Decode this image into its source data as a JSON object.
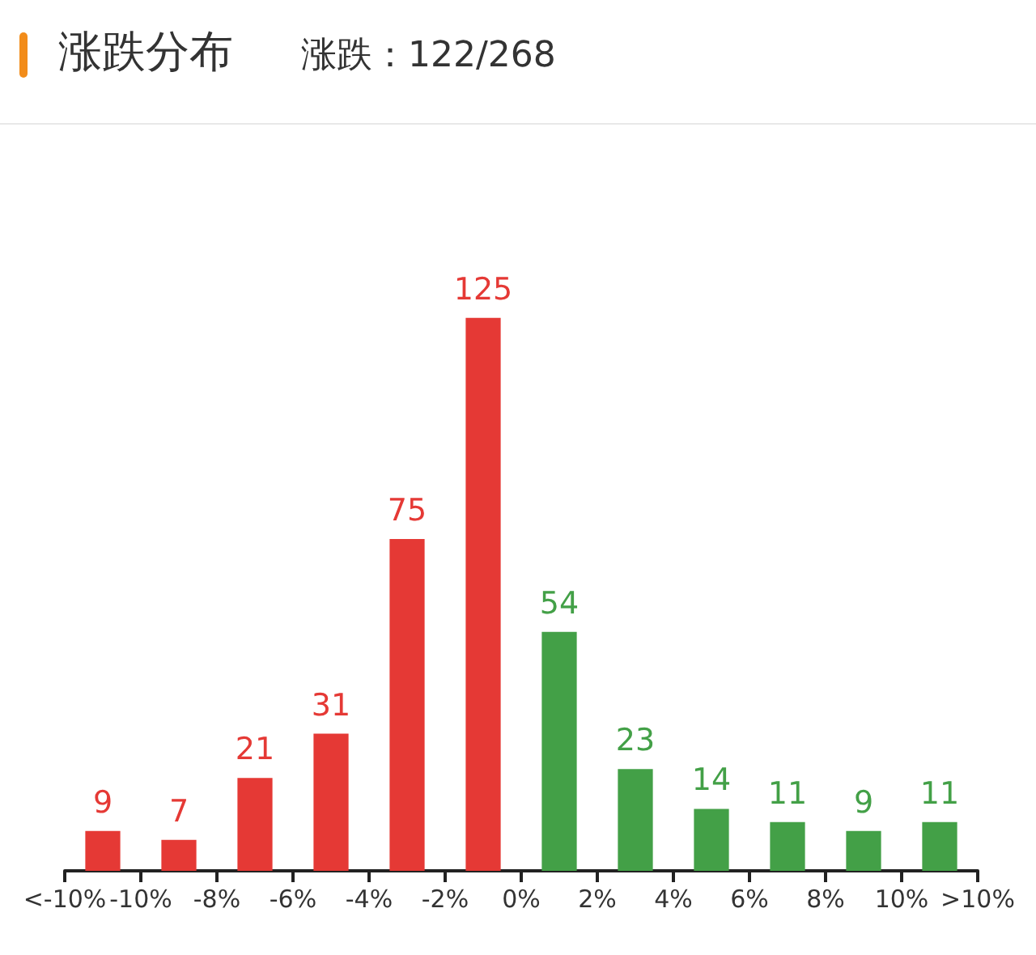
{
  "chart_data": {
    "type": "bar",
    "title": "涨跌分布",
    "subtitle": "涨跌：122/268",
    "x": [
      -11,
      -9,
      -7,
      -5,
      -3,
      -1,
      1,
      3,
      5,
      7,
      9,
      11
    ],
    "values": [
      9,
      7,
      21,
      31,
      75,
      125,
      54,
      23,
      14,
      11,
      9,
      11
    ],
    "colors": [
      "#e53935",
      "#e53935",
      "#e53935",
      "#e53935",
      "#e53935",
      "#e53935",
      "#43a047",
      "#43a047",
      "#43a047",
      "#43a047",
      "#43a047",
      "#43a047"
    ],
    "xlim": [
      -12,
      12
    ],
    "xticks": [
      {
        "value": -12,
        "label": "<-10%"
      },
      {
        "value": -10,
        "label": "-10%"
      },
      {
        "value": -8,
        "label": "-8%"
      },
      {
        "value": -6,
        "label": "-6%"
      },
      {
        "value": -4,
        "label": "-4%"
      },
      {
        "value": -2,
        "label": "-2%"
      },
      {
        "value": 0,
        "label": "0%"
      },
      {
        "value": 2,
        "label": "2%"
      },
      {
        "value": 4,
        "label": "4%"
      },
      {
        "value": 6,
        "label": "6%"
      },
      {
        "value": 8,
        "label": "8%"
      },
      {
        "value": 10,
        "label": "10%"
      },
      {
        "value": 12,
        "label": ">10%"
      }
    ],
    "data_labels": true,
    "grid": false
  }
}
